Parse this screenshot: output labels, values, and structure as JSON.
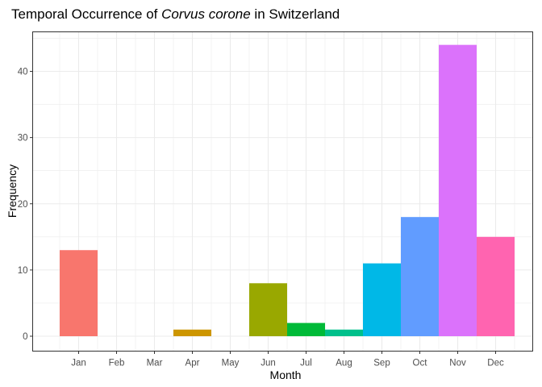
{
  "chart_data": {
    "type": "bar",
    "title_prefix": "Temporal Occurrence of ",
    "title_species": "Corvus corone",
    "title_suffix": " in Switzerland",
    "xlabel": "Month",
    "ylabel": "Frequency",
    "categories": [
      "Jan",
      "Feb",
      "Mar",
      "Apr",
      "May",
      "Jun",
      "Jul",
      "Aug",
      "Sep",
      "Oct",
      "Nov",
      "Dec"
    ],
    "values": [
      13,
      0,
      0,
      1,
      0,
      8,
      2,
      1,
      11,
      18,
      44,
      15
    ],
    "colors": [
      "#F8766D",
      "#DE8C00",
      "#B79F00",
      "#CD9600",
      "#7CAE00",
      "#99A800",
      "#00BA38",
      "#00C08B",
      "#00B8E7",
      "#619CFF",
      "#DB72FB",
      "#FF64B0"
    ],
    "ylim": [
      0,
      45
    ],
    "yticks": [
      0,
      10,
      20,
      30,
      40
    ],
    "grid": true,
    "legend": "none",
    "background": "#ffffff",
    "grid_color": "#ebebeb",
    "panel_border_color": "#333333"
  }
}
